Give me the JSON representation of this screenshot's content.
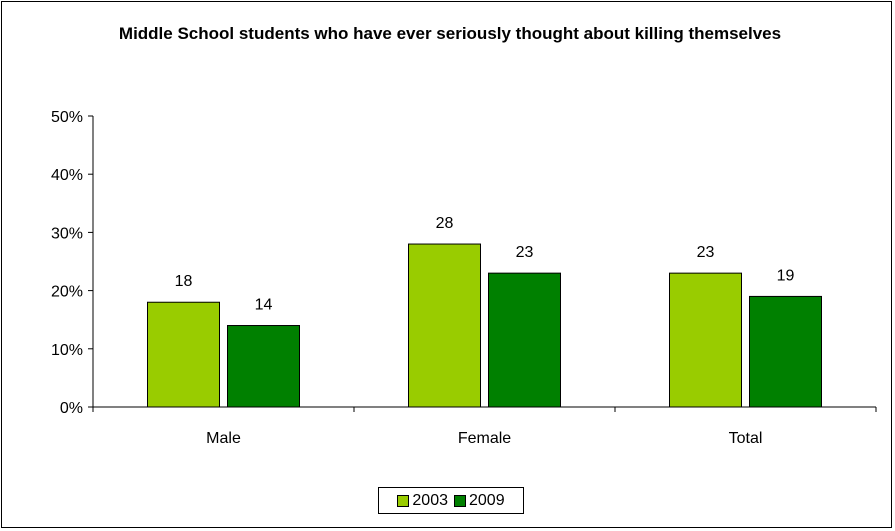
{
  "chart_data": {
    "type": "bar",
    "title": "Middle School students who have ever seriously thought about killing themselves",
    "categories": [
      "Male",
      "Female",
      "Total"
    ],
    "series": [
      {
        "name": "2003",
        "values": [
          18,
          28,
          23
        ],
        "labels": [
          "18",
          "28",
          "23"
        ],
        "color": "#99cc00"
      },
      {
        "name": "2009",
        "values": [
          14,
          23,
          19
        ],
        "labels": [
          "14",
          "23",
          "19"
        ],
        "color": "#008000"
      }
    ],
    "ylim": [
      0,
      50
    ],
    "yticks": [
      "0%",
      "10%",
      "20%",
      "30%",
      "40%",
      "50%"
    ],
    "grid": false,
    "legend": "bottom"
  }
}
